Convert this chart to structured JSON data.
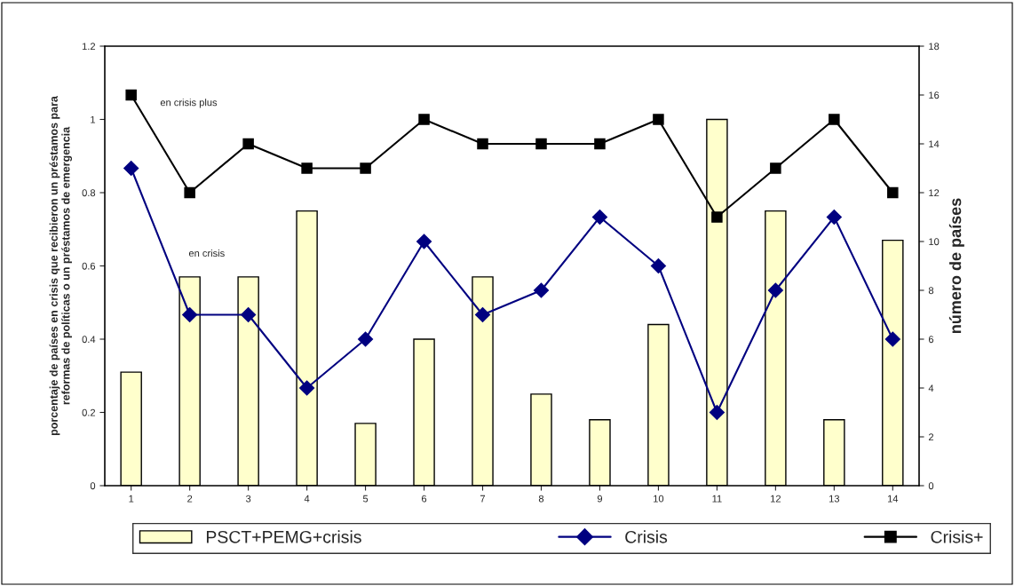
{
  "chart_data": {
    "type": "bar",
    "ylabel": "porcentaje de países en crisis que recibieron un préstamos para\nreformas de políticas o un préstamos de emergencia",
    "y2label": "número de países",
    "categories": [
      "1",
      "2",
      "3",
      "4",
      "5",
      "6",
      "7",
      "8",
      "9",
      "10",
      "11",
      "12",
      "13",
      "14"
    ],
    "series": [
      {
        "name": "PSCT+PEMG+crisis",
        "color": "#ffffcc",
        "values": [
          0.31,
          0.57,
          0.57,
          0.75,
          0.17,
          0.4,
          0.57,
          0.25,
          0.18,
          0.44,
          1.0,
          0.75,
          0.18,
          0.67
        ]
      },
      {
        "name": "Crisis",
        "type": "line",
        "axis": "y2",
        "color": "#000080",
        "marker": "diamond",
        "values": [
          13,
          7,
          7,
          4,
          6,
          10,
          7,
          8,
          11,
          9,
          3,
          8,
          11,
          6
        ]
      },
      {
        "name": "Crisis+",
        "type": "line",
        "axis": "y2",
        "color": "#000000",
        "marker": "square",
        "values": [
          16,
          12,
          14,
          13,
          13,
          15,
          14,
          14,
          14,
          15,
          11,
          13,
          15,
          12
        ]
      }
    ],
    "ylim": [
      0,
      1.2
    ],
    "yticks": [
      0,
      0.2,
      0.4,
      0.6,
      0.8,
      1,
      1.2
    ],
    "y2lim": [
      0,
      18
    ],
    "y2ticks": [
      0,
      2,
      4,
      6,
      8,
      10,
      12,
      14,
      16,
      18
    ],
    "annotations": [
      "en crisis plus",
      "en crisis"
    ],
    "grid": false,
    "legend": "bottom"
  }
}
